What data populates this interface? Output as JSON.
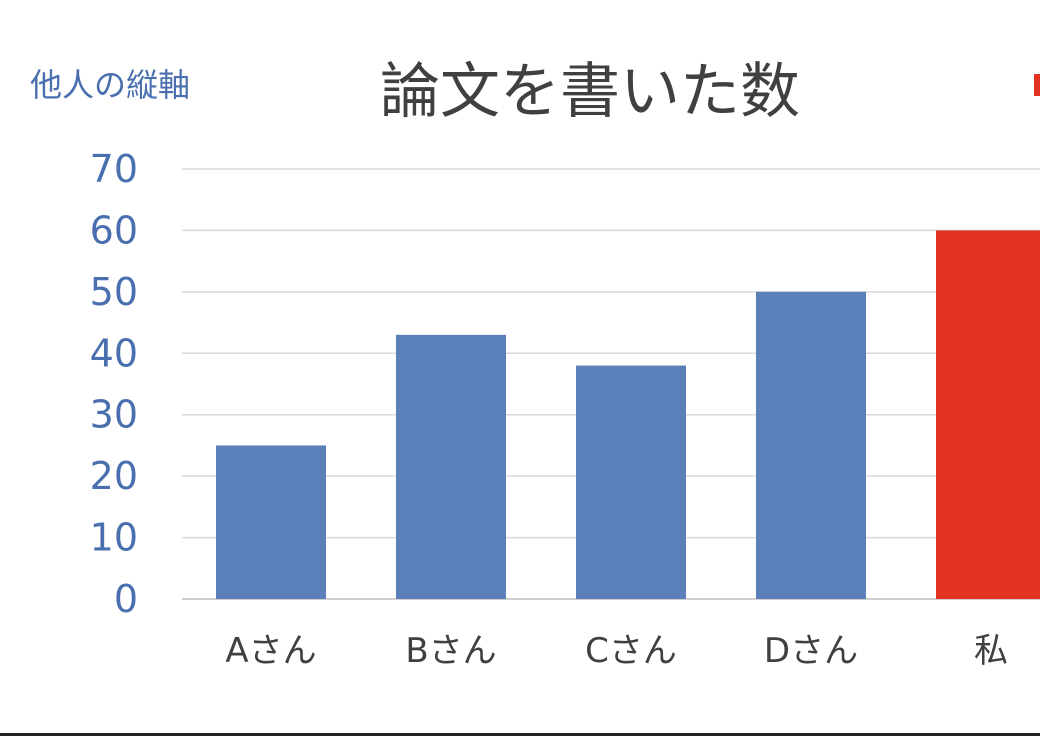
{
  "chart_data": {
    "type": "bar",
    "title": "論文を書いた数",
    "ylabel": "他人の縦軸",
    "categories": [
      "Aさん",
      "Bさん",
      "Cさん",
      "Dさん",
      "私"
    ],
    "values": [
      25,
      43,
      38,
      50,
      60
    ],
    "bar_colors": [
      "#5b7fb9",
      "#5b7fb9",
      "#5b7fb9",
      "#5b7fb9",
      "#e53323"
    ],
    "ylim": [
      0,
      70
    ],
    "yticks": [
      0,
      10,
      20,
      30,
      40,
      50,
      60,
      70
    ],
    "grid": true,
    "colors": {
      "axis_blue": "#4a6faf",
      "text_gray": "#404040",
      "accent_red": "#e53323"
    }
  }
}
